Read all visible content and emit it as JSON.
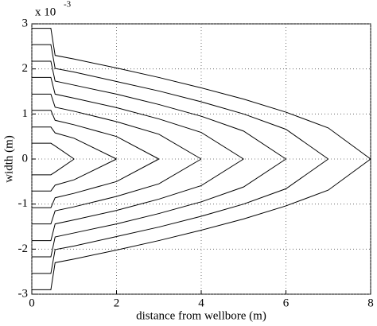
{
  "chart_data": {
    "type": "line",
    "xlabel": "distance from wellbore   (m)",
    "ylabel": "width   (m)",
    "y_multiplier": "x 10",
    "y_exponent": "-3",
    "x": [
      0,
      0.45,
      0.55,
      1,
      2,
      3,
      4,
      5,
      6,
      7,
      8
    ],
    "xlim": [
      0,
      8
    ],
    "xticks": [
      0,
      2,
      4,
      6,
      8
    ],
    "ylim": [
      -3,
      3
    ],
    "yticks": [
      -3,
      -2,
      -1,
      0,
      1,
      2,
      3
    ],
    "grid": true,
    "series": [
      {
        "color": "#000000",
        "values": [
          0.35,
          0.35,
          0.29,
          0,
          null,
          null,
          null,
          null,
          null,
          null,
          null
        ]
      },
      {
        "color": "#000000",
        "values": [
          0.71,
          0.71,
          0.58,
          0.46,
          0,
          null,
          null,
          null,
          null,
          null,
          null
        ]
      },
      {
        "color": "#000000",
        "values": [
          1.08,
          1.08,
          0.86,
          0.76,
          0.5,
          0,
          null,
          null,
          null,
          null,
          null
        ]
      },
      {
        "color": "#000000",
        "values": [
          1.44,
          1.44,
          1.15,
          1.06,
          0.83,
          0.55,
          0,
          null,
          null,
          null,
          null
        ]
      },
      {
        "color": "#000000",
        "values": [
          1.81,
          1.81,
          1.44,
          1.35,
          1.14,
          0.89,
          0.59,
          0,
          null,
          null,
          null
        ]
      },
      {
        "color": "#000000",
        "values": [
          2.17,
          2.17,
          1.73,
          1.64,
          1.44,
          1.21,
          0.95,
          0.62,
          0,
          null,
          null
        ]
      },
      {
        "color": "#000000",
        "values": [
          2.54,
          2.54,
          2.01,
          1.93,
          1.72,
          1.51,
          1.27,
          1.0,
          0.66,
          0,
          null
        ]
      },
      {
        "color": "#000000",
        "values": [
          2.9,
          2.9,
          2.3,
          2.22,
          2.02,
          1.81,
          1.58,
          1.33,
          1.04,
          0.69,
          0
        ]
      },
      {
        "color": "#000000",
        "values": [
          -0.35,
          -0.35,
          -0.29,
          0,
          null,
          null,
          null,
          null,
          null,
          null,
          null
        ]
      },
      {
        "color": "#000000",
        "values": [
          -0.71,
          -0.71,
          -0.58,
          -0.46,
          0,
          null,
          null,
          null,
          null,
          null,
          null
        ]
      },
      {
        "color": "#000000",
        "values": [
          -1.08,
          -1.08,
          -0.86,
          -0.76,
          -0.5,
          0,
          null,
          null,
          null,
          null,
          null
        ]
      },
      {
        "color": "#000000",
        "values": [
          -1.44,
          -1.44,
          -1.15,
          -1.06,
          -0.83,
          -0.55,
          0,
          null,
          null,
          null,
          null
        ]
      },
      {
        "color": "#000000",
        "values": [
          -1.81,
          -1.81,
          -1.44,
          -1.35,
          -1.14,
          -0.89,
          -0.59,
          0,
          null,
          null,
          null
        ]
      },
      {
        "color": "#000000",
        "values": [
          -2.17,
          -2.17,
          -1.73,
          -1.64,
          -1.44,
          -1.21,
          -0.95,
          -0.62,
          0,
          null,
          null
        ]
      },
      {
        "color": "#000000",
        "values": [
          -2.54,
          -2.54,
          -2.01,
          -1.93,
          -1.72,
          -1.51,
          -1.27,
          -1.0,
          -0.66,
          0,
          null
        ]
      },
      {
        "color": "#000000",
        "values": [
          -2.9,
          -2.9,
          -2.3,
          -2.22,
          -2.02,
          -1.81,
          -1.58,
          -1.33,
          -1.04,
          -0.69,
          0
        ]
      }
    ]
  }
}
